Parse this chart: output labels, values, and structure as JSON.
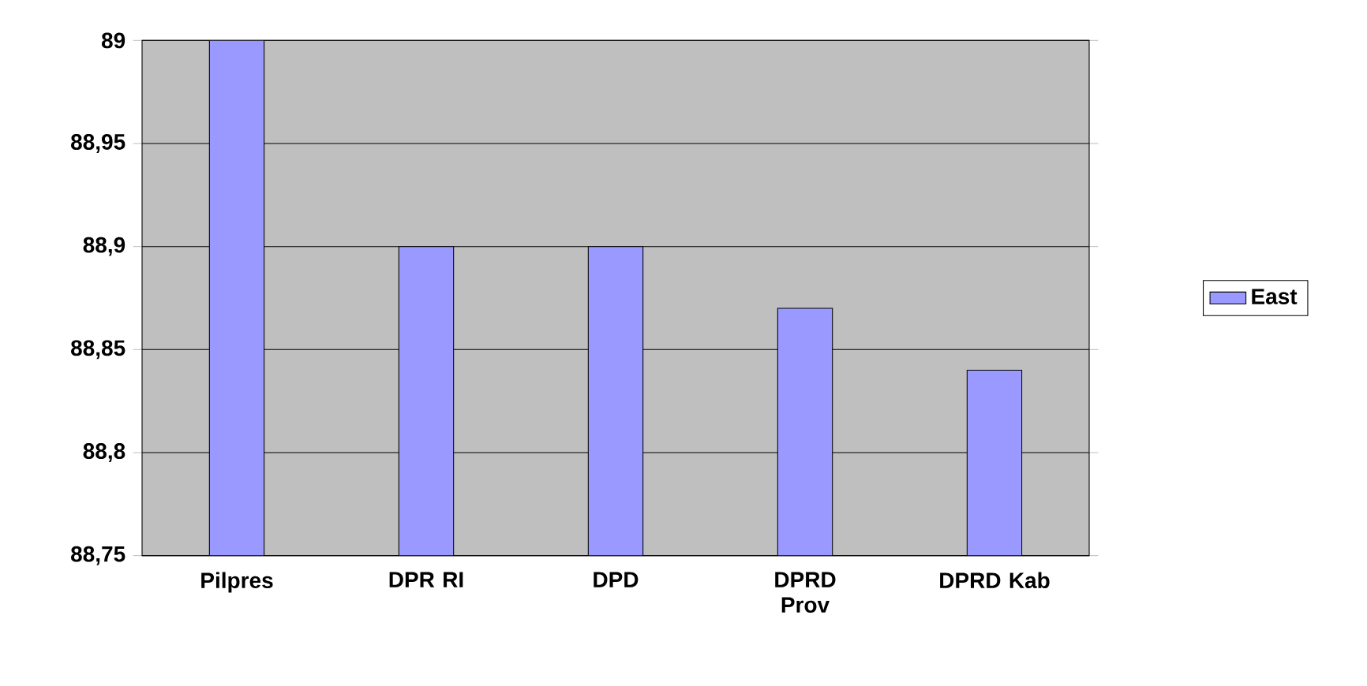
{
  "chart_data": {
    "type": "bar",
    "categories": [
      "Pilpres",
      "DPR RI",
      "DPD",
      "DPRD Prov",
      "DPRD Kab"
    ],
    "series": [
      {
        "name": "East",
        "color": "#9999ff",
        "values": [
          89,
          88.9,
          88.9,
          88.87,
          88.84
        ]
      }
    ],
    "ylim": [
      88.75,
      89
    ],
    "yticks": [
      {
        "value": 88.75,
        "label": "88,75"
      },
      {
        "value": 88.8,
        "label": "88,8"
      },
      {
        "value": 88.85,
        "label": "88,85"
      },
      {
        "value": 88.9,
        "label": "88,9"
      },
      {
        "value": 88.95,
        "label": "88,95"
      },
      {
        "value": 89,
        "label": "89"
      }
    ],
    "grid": "y",
    "legend": "right"
  }
}
